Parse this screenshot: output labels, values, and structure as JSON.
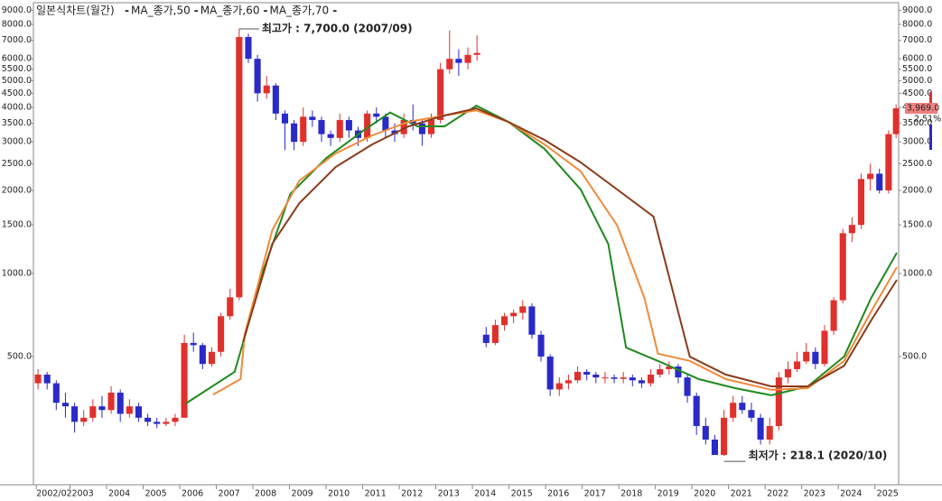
{
  "chart_data": {
    "type": "candlestick",
    "title": "일본식차트(월간)",
    "log_scale": true,
    "ylim": [
      171.5,
      9440
    ],
    "yticks": [
      {
        "value": 9000,
        "label": "9000.0"
      },
      {
        "value": 8000,
        "label": "8000.0"
      },
      {
        "value": 7000,
        "label": "7000.0"
      },
      {
        "value": 6000,
        "label": "6000.0"
      },
      {
        "value": 5500,
        "label": "5500.0"
      },
      {
        "value": 5000,
        "label": "5000.0"
      },
      {
        "value": 4500,
        "label": "4500.0"
      },
      {
        "value": 4000,
        "label": "4000.0"
      },
      {
        "value": 3500,
        "label": "3500.0"
      },
      {
        "value": 3000,
        "label": "3000.0"
      },
      {
        "value": 2500,
        "label": "2500.0"
      },
      {
        "value": 2000,
        "label": "2000.0"
      },
      {
        "value": 1500,
        "label": "1500.0"
      },
      {
        "value": 1000,
        "label": "1000.0"
      },
      {
        "value": 500,
        "label": "500.0"
      }
    ],
    "xlim": [
      2002,
      2025.65
    ],
    "xticks": [
      {
        "value": 2002.08,
        "label": "2002/02"
      },
      2003,
      2004,
      2005,
      2006,
      2007,
      2008,
      2009,
      2010,
      2011,
      2012,
      2013,
      2014,
      2015,
      2016,
      2017,
      2018,
      2019,
      2020,
      2021,
      2022,
      2023,
      2024,
      2025
    ],
    "up_color": "#e0302c",
    "down_color": "#2a2ac8",
    "candles": {
      "x": [
        2002.125,
        2002.375,
        2002.625,
        2002.875,
        2003.125,
        2003.375,
        2003.625,
        2003.875,
        2004.125,
        2004.375,
        2004.625,
        2004.875,
        2005.125,
        2005.375,
        2005.625,
        2005.875,
        2006.125,
        2006.375,
        2006.625,
        2006.875,
        2007.125,
        2007.375,
        2007.625,
        2007.875,
        2008.125,
        2008.375,
        2008.625,
        2008.875,
        2009.125,
        2009.375,
        2009.625,
        2009.875,
        2010.125,
        2010.375,
        2010.625,
        2010.875,
        2011.125,
        2011.375,
        2011.625,
        2011.875,
        2012.125,
        2012.375,
        2012.625,
        2012.875,
        2013.125,
        2013.375,
        2013.625,
        2013.875,
        2014.125,
        2014.375,
        2014.625,
        2014.875,
        2015.125,
        2015.375,
        2015.625,
        2015.875,
        2016.125,
        2016.375,
        2016.625,
        2016.875,
        2017.125,
        2017.375,
        2017.625,
        2017.875,
        2018.125,
        2018.375,
        2018.625,
        2018.875,
        2019.125,
        2019.375,
        2019.625,
        2019.875,
        2020.125,
        2020.375,
        2020.625,
        2020.875,
        2021.125,
        2021.375,
        2021.625,
        2021.875,
        2022.125,
        2022.375,
        2022.625,
        2022.875,
        2023.125,
        2023.375,
        2023.625,
        2023.875,
        2024.125,
        2024.375,
        2024.625,
        2024.875,
        2025.125,
        2025.375,
        2025.58
      ],
      "open": [
        400,
        430,
        400,
        340,
        330,
        290,
        300,
        330,
        320,
        370,
        310,
        330,
        300,
        290,
        285,
        290,
        300,
        560,
        550,
        470,
        520,
        700,
        820,
        7200,
        6000,
        4500,
        4800,
        3800,
        3500,
        3000,
        3700,
        3600,
        3200,
        3100,
        3600,
        3300,
        3100,
        3800,
        3700,
        3300,
        3200,
        3600,
        3500,
        3200,
        3600,
        5500,
        6000,
        5800,
        6200,
        600,
        560,
        650,
        700,
        720,
        760,
        600,
        500,
        380,
        400,
        410,
        440,
        430,
        420,
        420,
        415,
        420,
        410,
        400,
        430,
        450,
        460,
        420,
        360,
        280,
        250,
        220,
        300,
        340,
        320,
        300,
        250,
        280,
        420,
        450,
        480,
        520,
        470,
        620,
        800,
        1400,
        1500,
        2200,
        2300,
        2000,
        3200
      ],
      "high": [
        450,
        440,
        410,
        370,
        340,
        320,
        350,
        360,
        390,
        380,
        350,
        340,
        310,
        300,
        300,
        310,
        600,
        610,
        560,
        540,
        720,
        880,
        7700,
        7400,
        6200,
        5200,
        4900,
        3900,
        3600,
        4000,
        3900,
        3700,
        3300,
        3800,
        3700,
        3400,
        3900,
        4000,
        3800,
        3500,
        3800,
        4100,
        3600,
        3800,
        5800,
        7600,
        6500,
        6600,
        7300,
        640,
        680,
        720,
        740,
        800,
        780,
        620,
        510,
        420,
        430,
        460,
        450,
        440,
        440,
        430,
        440,
        430,
        420,
        450,
        470,
        480,
        470,
        430,
        370,
        300,
        260,
        320,
        360,
        360,
        340,
        310,
        300,
        440,
        480,
        520,
        560,
        540,
        650,
        820,
        1450,
        1600,
        2300,
        2500,
        2400,
        3300,
        4100
      ],
      "low": [
        380,
        380,
        320,
        300,
        265,
        280,
        290,
        300,
        310,
        290,
        300,
        290,
        280,
        275,
        280,
        280,
        300,
        520,
        450,
        460,
        500,
        680,
        800,
        5800,
        4200,
        4300,
        3600,
        2800,
        2800,
        2900,
        3400,
        3000,
        2900,
        3000,
        3100,
        2900,
        3000,
        3500,
        3100,
        3000,
        3100,
        3300,
        2900,
        3100,
        3500,
        5300,
        5200,
        5500,
        5900,
        540,
        550,
        620,
        660,
        680,
        580,
        480,
        360,
        360,
        380,
        400,
        410,
        400,
        400,
        400,
        400,
        390,
        385,
        390,
        420,
        430,
        400,
        340,
        260,
        240,
        225,
        218.1,
        290,
        310,
        290,
        240,
        240,
        270,
        400,
        440,
        470,
        450,
        460,
        600,
        780,
        1300,
        1450,
        2000,
        1950,
        1950,
        3100
      ],
      "close": [
        430,
        400,
        340,
        330,
        290,
        300,
        330,
        320,
        370,
        310,
        330,
        300,
        290,
        285,
        290,
        300,
        560,
        550,
        470,
        520,
        700,
        820,
        7200,
        6000,
        4500,
        4800,
        3800,
        3500,
        3000,
        3700,
        3600,
        3200,
        3100,
        3600,
        3300,
        3100,
        3800,
        3700,
        3300,
        3200,
        3600,
        3500,
        3200,
        3600,
        5500,
        6000,
        5800,
        6200,
        6300,
        560,
        650,
        700,
        720,
        760,
        600,
        500,
        380,
        400,
        410,
        440,
        430,
        420,
        420,
        415,
        420,
        410,
        400,
        430,
        450,
        460,
        420,
        360,
        280,
        250,
        220,
        300,
        340,
        320,
        300,
        250,
        280,
        420,
        450,
        480,
        520,
        470,
        620,
        800,
        1400,
        1500,
        2200,
        2300,
        2000,
        3200,
        3969
      ]
    },
    "series": [
      {
        "name": "MA_종가,50",
        "color": "#1e8a1e",
        "x": [
          2006.17,
          2007.5,
          2007.8,
          2008.28,
          2009.02,
          2010.01,
          2011.01,
          2011.75,
          2012.5,
          2013.24,
          2014.11,
          2014.98,
          2015.97,
          2016.96,
          2017.71,
          2018.2,
          2019.2,
          2020.19,
          2021.18,
          2022.17,
          2023.17,
          2024.16,
          2024.9,
          2025.6
        ],
        "values": [
          338,
          440,
          604,
          1023,
          1941,
          2625,
          3290,
          3830,
          3413,
          3413,
          4060,
          3545,
          2830,
          2015,
          1282,
          539,
          474,
          414,
          384,
          362,
          390,
          500,
          816,
          1189
        ]
      },
      {
        "name": "MA_종가,60",
        "color": "#f08a3a",
        "x": [
          2006.91,
          2007.66,
          2007.78,
          2008.53,
          2009.27,
          2010.26,
          2011.26,
          2012.25,
          2013.24,
          2014.11,
          2014.98,
          2015.97,
          2016.96,
          2017.96,
          2018.7,
          2019.07,
          2019.94,
          2020.93,
          2022.17,
          2023.17,
          2024.16,
          2024.9,
          2025.6
        ],
        "values": [
          364,
          414,
          604,
          1436,
          2173,
          2724,
          3165,
          3545,
          3740,
          3900,
          3545,
          2937,
          2345,
          1491,
          816,
          512,
          482,
          414,
          379,
          384,
          482,
          729,
          1054
        ]
      },
      {
        "name": "MA_종가,70",
        "color": "#8b3a1a",
        "x": [
          2007.73,
          2008.53,
          2009.27,
          2010.26,
          2011.26,
          2012.25,
          2013.24,
          2014.11,
          2014.98,
          2015.97,
          2016.96,
          2017.96,
          2018.95,
          2019.94,
          2020.93,
          2022.17,
          2023.17,
          2024.16,
          2024.9,
          2025.6
        ],
        "values": [
          565,
          1282,
          1800,
          2432,
          2937,
          3413,
          3740,
          3970,
          3545,
          3050,
          2527,
          2015,
          1607,
          500,
          430,
          390,
          390,
          463,
          676,
          948
        ]
      }
    ],
    "high_annotation": "최고가 : 7,700.0 (2007/09)",
    "low_annotation": "최저가 : 218.1 (2020/10)",
    "last_price_label": "3,969.0",
    "change_label": "2.51%"
  }
}
